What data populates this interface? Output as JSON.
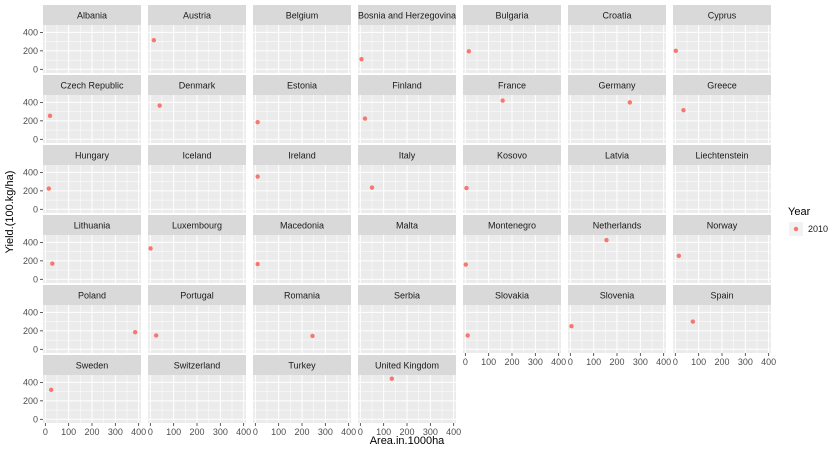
{
  "chart_data": {
    "type": "scatter",
    "faceted": true,
    "xlabel": "Area.in.1000ha",
    "ylabel": "Yield.(100.kg/ha)",
    "xlim": [
      -10,
      410
    ],
    "ylim": [
      -40,
      480
    ],
    "x_ticks": [
      "0",
      "100",
      "200",
      "300",
      "400"
    ],
    "y_ticks": [
      "0",
      "200",
      "400"
    ],
    "x_tick_values": [
      0,
      100,
      200,
      300,
      400
    ],
    "y_tick_values": [
      0,
      200,
      400
    ],
    "legend": {
      "title": "Year",
      "entries": [
        "2010"
      ],
      "position": "right"
    },
    "colors": {
      "point": "#F8766D",
      "panel": "#EBEBEB",
      "strip": "#D9D9D9",
      "grid": "#FFFFFF"
    },
    "panels": [
      {
        "country": "Albania",
        "points": []
      },
      {
        "country": "Austria",
        "points": [
          {
            "x": 15,
            "y": 315
          }
        ]
      },
      {
        "country": "Belgium",
        "points": []
      },
      {
        "country": "Bosnia and Herzegovina",
        "points": [
          {
            "x": 5,
            "y": 110
          }
        ]
      },
      {
        "country": "Bulgaria",
        "points": [
          {
            "x": 15,
            "y": 195
          }
        ]
      },
      {
        "country": "Croatia",
        "points": []
      },
      {
        "country": "Cyprus",
        "points": [
          {
            "x": 2,
            "y": 200
          }
        ]
      },
      {
        "country": "Czech Republic",
        "points": [
          {
            "x": 20,
            "y": 255
          }
        ]
      },
      {
        "country": "Denmark",
        "points": [
          {
            "x": 40,
            "y": 365
          }
        ]
      },
      {
        "country": "Estonia",
        "points": [
          {
            "x": 10,
            "y": 185
          }
        ]
      },
      {
        "country": "Finland",
        "points": [
          {
            "x": 20,
            "y": 225
          }
        ]
      },
      {
        "country": "France",
        "points": [
          {
            "x": 160,
            "y": 420
          }
        ]
      },
      {
        "country": "Germany",
        "points": [
          {
            "x": 255,
            "y": 400
          }
        ]
      },
      {
        "country": "Greece",
        "points": [
          {
            "x": 35,
            "y": 315
          }
        ]
      },
      {
        "country": "Hungary",
        "points": [
          {
            "x": 15,
            "y": 225
          }
        ]
      },
      {
        "country": "Iceland",
        "points": []
      },
      {
        "country": "Ireland",
        "points": [
          {
            "x": 10,
            "y": 355
          }
        ]
      },
      {
        "country": "Italy",
        "points": [
          {
            "x": 50,
            "y": 235
          }
        ]
      },
      {
        "country": "Kosovo",
        "points": [
          {
            "x": 5,
            "y": 230
          }
        ]
      },
      {
        "country": "Latvia",
        "points": []
      },
      {
        "country": "Liechtenstein",
        "points": []
      },
      {
        "country": "Lithuania",
        "points": [
          {
            "x": 30,
            "y": 170
          }
        ]
      },
      {
        "country": "Luxembourg",
        "points": [
          {
            "x": 1,
            "y": 335
          }
        ]
      },
      {
        "country": "Macedonia",
        "points": [
          {
            "x": 10,
            "y": 165
          }
        ]
      },
      {
        "country": "Malta",
        "points": []
      },
      {
        "country": "Montenegro",
        "points": [
          {
            "x": 2,
            "y": 160
          }
        ]
      },
      {
        "country": "Netherlands",
        "points": [
          {
            "x": 155,
            "y": 425
          }
        ]
      },
      {
        "country": "Norway",
        "points": [
          {
            "x": 15,
            "y": 255
          }
        ]
      },
      {
        "country": "Poland",
        "points": [
          {
            "x": 385,
            "y": 185
          }
        ]
      },
      {
        "country": "Portugal",
        "points": [
          {
            "x": 25,
            "y": 150
          }
        ]
      },
      {
        "country": "Romania",
        "points": [
          {
            "x": 245,
            "y": 145
          }
        ]
      },
      {
        "country": "Serbia",
        "points": []
      },
      {
        "country": "Slovakia",
        "points": [
          {
            "x": 10,
            "y": 150
          }
        ]
      },
      {
        "country": "Slovenia",
        "points": [
          {
            "x": 5,
            "y": 250
          }
        ]
      },
      {
        "country": "Spain",
        "points": [
          {
            "x": 75,
            "y": 300
          }
        ]
      },
      {
        "country": "Sweden",
        "points": [
          {
            "x": 25,
            "y": 320
          }
        ]
      },
      {
        "country": "Switzerland",
        "points": []
      },
      {
        "country": "Turkey",
        "points": []
      },
      {
        "country": "United Kingdom",
        "points": [
          {
            "x": 135,
            "y": 440
          }
        ]
      }
    ]
  }
}
